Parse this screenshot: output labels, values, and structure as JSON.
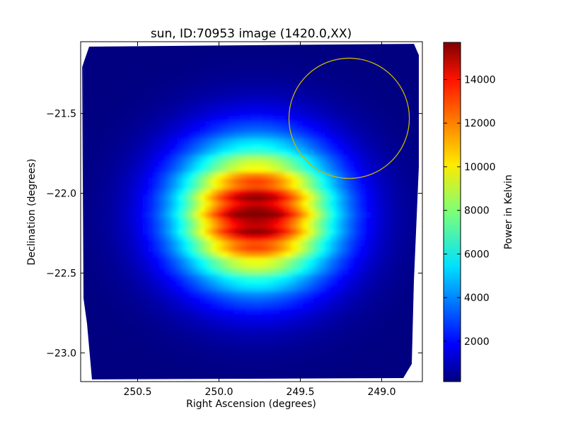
{
  "chart_data": {
    "type": "heatmap",
    "title": "sun, ID:70953 image (1420.0,XX)",
    "xlabel": "Right Ascension (degrees)",
    "ylabel": "Declination (degrees)",
    "xlim": [
      250.85,
      248.75
    ],
    "ylim": [
      -23.18,
      -21.05
    ],
    "x_inverted": true,
    "xticks": [
      {
        "value": 250.5,
        "label": "250.5"
      },
      {
        "value": 250.0,
        "label": "250.0"
      },
      {
        "value": 249.5,
        "label": "249.5"
      },
      {
        "value": 249.0,
        "label": "249.0"
      }
    ],
    "yticks": [
      {
        "value": -21.5,
        "label": "−21.5"
      },
      {
        "value": -22.0,
        "label": "−22.0"
      },
      {
        "value": -22.5,
        "label": "−22.5"
      },
      {
        "value": -23.0,
        "label": "−23.0"
      }
    ],
    "colormap": "jet",
    "colorbar": {
      "label": "Power in Kelvin",
      "range": [
        150,
        15700
      ],
      "ticks": [
        {
          "value": 2000,
          "label": "2000"
        },
        {
          "value": 4000,
          "label": "4000"
        },
        {
          "value": 6000,
          "label": "6000"
        },
        {
          "value": 8000,
          "label": "8000"
        },
        {
          "value": 10000,
          "label": "10000"
        },
        {
          "value": 12000,
          "label": "12000"
        },
        {
          "value": 14000,
          "label": "14000"
        }
      ]
    },
    "source": {
      "name": "sun",
      "center_ra": 249.77,
      "center_dec": -22.13,
      "peak_power": 15700,
      "background_power": 150
    },
    "circle_marker": {
      "center_ra": 249.2,
      "center_dec": -21.53,
      "radius_deg": 0.37,
      "color": "#c8b400"
    }
  }
}
